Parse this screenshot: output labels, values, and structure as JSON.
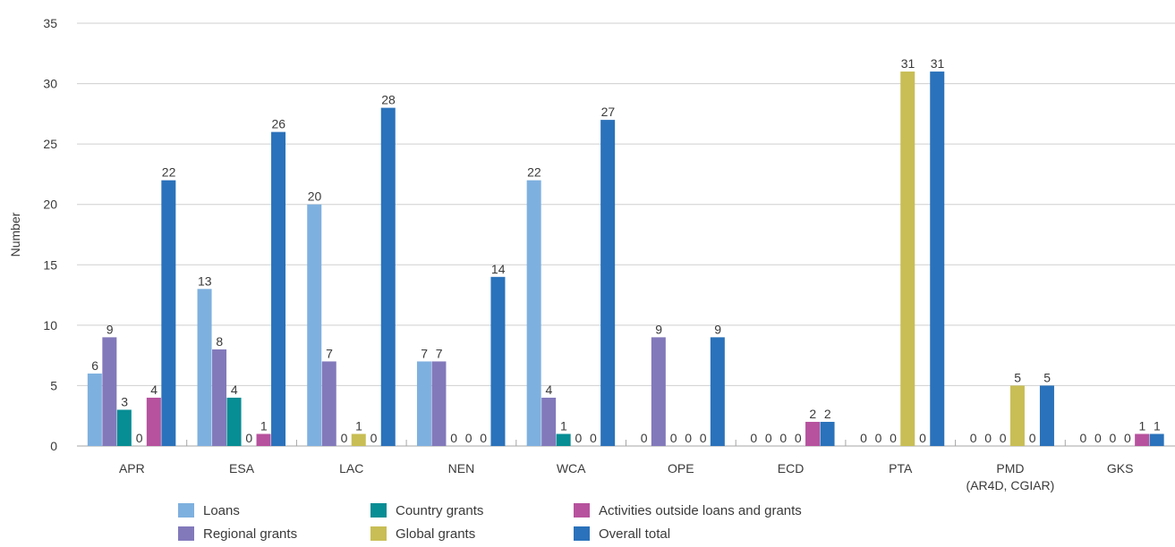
{
  "chart_data": {
    "type": "bar",
    "ylabel": "Number",
    "xlabel": "",
    "ylim": [
      0,
      35
    ],
    "yticks": [
      0,
      5,
      10,
      15,
      20,
      25,
      30,
      35
    ],
    "grid": true,
    "legend_position": "bottom",
    "categories": [
      [
        "APR"
      ],
      [
        "ESA"
      ],
      [
        "LAC"
      ],
      [
        "NEN"
      ],
      [
        "WCA"
      ],
      [
        "OPE"
      ],
      [
        "ECD"
      ],
      [
        "PTA"
      ],
      [
        "PMD",
        "(AR4D, CGIAR)"
      ],
      [
        "GKS"
      ]
    ],
    "series": [
      {
        "name": "Loans",
        "color": "#7eb0df",
        "values": [
          6,
          13,
          20,
          7,
          22,
          0,
          0,
          0,
          0,
          0
        ]
      },
      {
        "name": "Regional grants",
        "color": "#8279bb",
        "values": [
          9,
          8,
          7,
          7,
          4,
          9,
          0,
          0,
          0,
          0
        ]
      },
      {
        "name": "Country grants",
        "color": "#078d94",
        "values": [
          3,
          4,
          0,
          0,
          1,
          0,
          0,
          0,
          0,
          0
        ]
      },
      {
        "name": "Global grants",
        "color": "#c8be55",
        "values": [
          0,
          0,
          1,
          0,
          0,
          0,
          0,
          31,
          5,
          0
        ]
      },
      {
        "name": "Activities outside loans and grants",
        "color": "#b7529e",
        "values": [
          4,
          1,
          0,
          0,
          0,
          0,
          2,
          0,
          0,
          1
        ]
      },
      {
        "name": "Overall total",
        "color": "#2a72bb",
        "values": [
          22,
          26,
          28,
          14,
          27,
          9,
          2,
          31,
          5,
          1
        ]
      }
    ],
    "legend_order": [
      0,
      2,
      4,
      1,
      3,
      5
    ]
  }
}
